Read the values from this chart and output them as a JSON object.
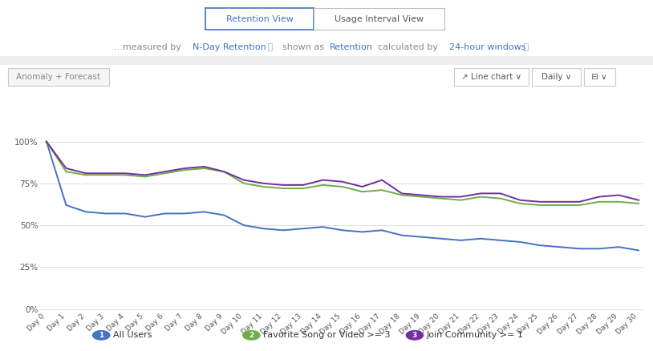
{
  "days": [
    "Day 0",
    "Day 1",
    "Day 2",
    "Day 3",
    "Day 4",
    "Day 5",
    "Day 6",
    "Day 7",
    "Day 8",
    "Day 9",
    "Day 10",
    "Day 11",
    "Day 12",
    "Day 13",
    "Day 14",
    "Day 15",
    "Day 16",
    "Day 17",
    "Day 18",
    "Day 19",
    "Day 20",
    "Day 21",
    "Day 22",
    "Day 23",
    "Day 24",
    "Day 25",
    "Day 26",
    "Day 27",
    "Day 28",
    "Day 29",
    "Day 30"
  ],
  "all_users": [
    1.0,
    0.62,
    0.58,
    0.57,
    0.57,
    0.55,
    0.57,
    0.57,
    0.58,
    0.56,
    0.5,
    0.48,
    0.47,
    0.48,
    0.49,
    0.47,
    0.46,
    0.47,
    0.44,
    0.43,
    0.42,
    0.41,
    0.42,
    0.41,
    0.4,
    0.38,
    0.37,
    0.36,
    0.36,
    0.37,
    0.35
  ],
  "fav_song": [
    1.0,
    0.82,
    0.8,
    0.8,
    0.8,
    0.79,
    0.81,
    0.83,
    0.84,
    0.82,
    0.75,
    0.73,
    0.72,
    0.72,
    0.74,
    0.73,
    0.7,
    0.71,
    0.68,
    0.67,
    0.66,
    0.65,
    0.67,
    0.66,
    0.63,
    0.62,
    0.62,
    0.62,
    0.64,
    0.64,
    0.63
  ],
  "join_community": [
    1.0,
    0.84,
    0.81,
    0.81,
    0.81,
    0.8,
    0.82,
    0.84,
    0.85,
    0.82,
    0.77,
    0.75,
    0.74,
    0.74,
    0.77,
    0.76,
    0.73,
    0.77,
    0.69,
    0.68,
    0.67,
    0.67,
    0.69,
    0.69,
    0.65,
    0.64,
    0.64,
    0.64,
    0.67,
    0.68,
    0.65
  ],
  "color_all_users": "#4472c4",
  "color_fav_song": "#70ad47",
  "color_join_community": "#7030a0",
  "ytick_labels": [
    "0%",
    "25%",
    "50%",
    "75%",
    "100%"
  ],
  "ytick_vals": [
    0.0,
    0.25,
    0.5,
    0.75,
    1.0
  ],
  "legend_labels": [
    "All Users",
    "Favorite Song or Video >= 3",
    "Join Community >= 1"
  ],
  "legend_numbers": [
    "1",
    "2",
    "3"
  ],
  "legend_colors": [
    "#4472c4",
    "#70ad47",
    "#7030a0"
  ],
  "bg_color": "#ffffff",
  "grid_color": "#e0e0e0"
}
